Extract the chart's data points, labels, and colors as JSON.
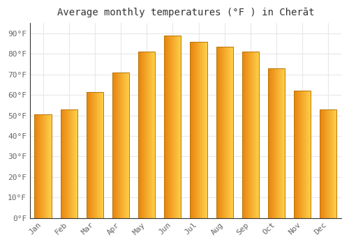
{
  "title": "Average monthly temperatures (°F ) in Cherāt",
  "months": [
    "Jan",
    "Feb",
    "Mar",
    "Apr",
    "May",
    "Jun",
    "Jul",
    "Aug",
    "Sep",
    "Oct",
    "Nov",
    "Dec"
  ],
  "values": [
    50.5,
    53.0,
    61.5,
    71.0,
    81.0,
    89.0,
    86.0,
    83.5,
    81.0,
    73.0,
    62.0,
    53.0
  ],
  "bar_color_left": "#E8820C",
  "bar_color_right": "#FFD04A",
  "bar_color_mid": "#F5A623",
  "ylim": [
    0,
    95
  ],
  "yticks": [
    0,
    10,
    20,
    30,
    40,
    50,
    60,
    70,
    80,
    90
  ],
  "ytick_labels": [
    "0°F",
    "10°F",
    "20°F",
    "30°F",
    "40°F",
    "50°F",
    "60°F",
    "70°F",
    "80°F",
    "90°F"
  ],
  "bg_color": "#ffffff",
  "plot_bg_color": "#ffffff",
  "grid_color": "#e8e8e8",
  "bar_edge_color": "#b8760a",
  "title_fontsize": 10,
  "tick_fontsize": 8,
  "tick_color": "#666666",
  "figsize": [
    5.0,
    3.5
  ],
  "dpi": 100,
  "bar_width": 0.65
}
